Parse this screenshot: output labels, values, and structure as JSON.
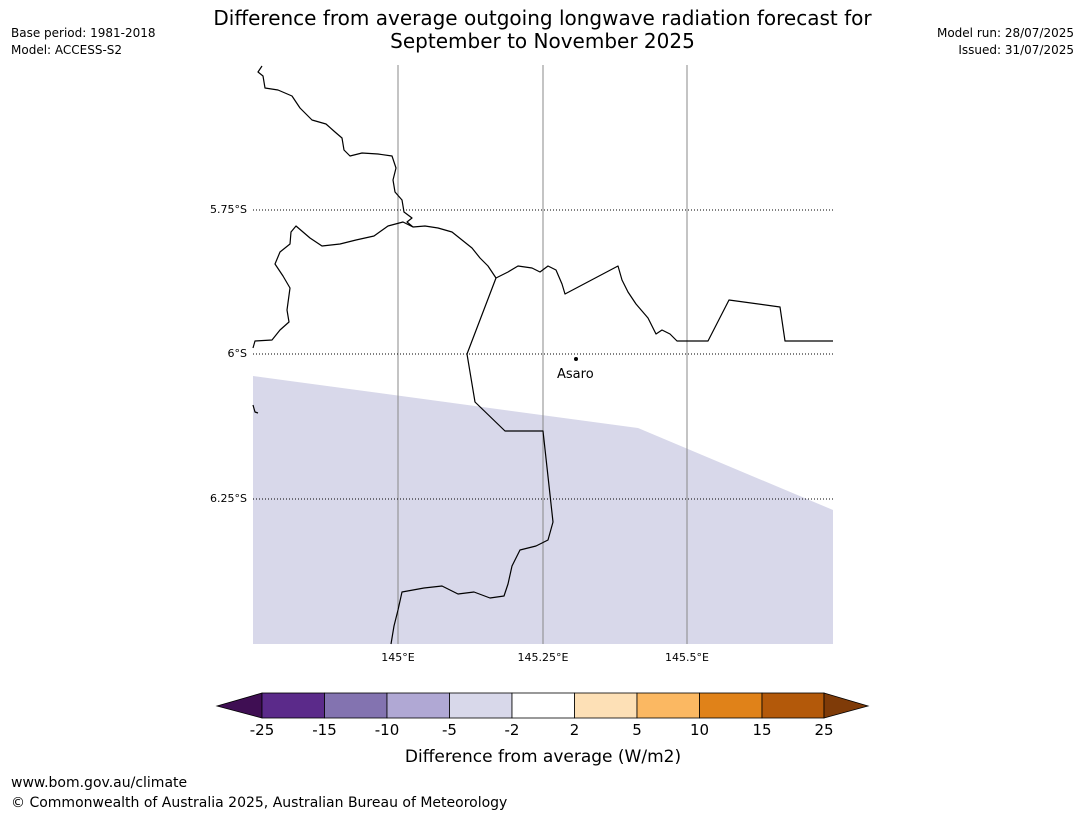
{
  "title_line1": "Difference from average outgoing longwave radiation forecast for",
  "title_line2": "September to November 2025",
  "base_period": "Base period: 1981-2018",
  "model": "Model: ACCESS-S2",
  "model_run": "Model run: 28/07/2025",
  "issued": "Issued: 31/07/2025",
  "map": {
    "lat_labels": [
      "5.75°S",
      "6°S",
      "6.25°S"
    ],
    "lon_labels": [
      "145°E",
      "145.25°E",
      "145.5°E"
    ],
    "place": "Asaro",
    "shaded_category": "-5 to -2",
    "shade_color": "#d8d8ea"
  },
  "legend": {
    "title": "Difference from average (W/m2)",
    "ticks": [
      "-25",
      "-15",
      "-10",
      "-5",
      "-2",
      "2",
      "5",
      "10",
      "15",
      "25"
    ],
    "colors": [
      "#3f0e53",
      "#5b2a8a",
      "#8373b0",
      "#b0a8d4",
      "#d8d8ea",
      "#ffffff",
      "#fde0b6",
      "#fbb862",
      "#e08219",
      "#b3590a",
      "#7f3b08"
    ]
  },
  "footer": {
    "url": "www.bom.gov.au/climate",
    "copyright": "© Commonwealth of Australia 2025, Australian Bureau of Meteorology"
  }
}
